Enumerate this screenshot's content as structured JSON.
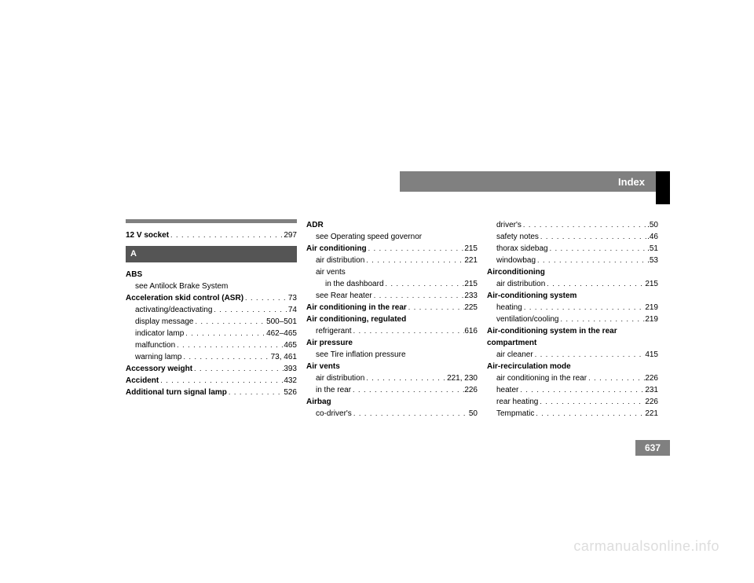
{
  "header": {
    "title": "Index"
  },
  "page_number": "637",
  "watermark": "carmanualsonline.info",
  "columns": [
    {
      "top_rule": true,
      "items": [
        {
          "label": "12 V socket",
          "bold": true,
          "page": "297"
        },
        {
          "section_letter": "A"
        },
        {
          "label": "ABS",
          "bold": true,
          "no_page": true
        },
        {
          "label": "see Antilock Brake System",
          "indent": 1,
          "no_page": true
        },
        {
          "label": "Acceleration skid control (ASR)",
          "bold": true,
          "page": "73"
        },
        {
          "label": "activating/deactivating",
          "indent": 1,
          "page": "74"
        },
        {
          "label": "display message",
          "indent": 1,
          "page": "500–501"
        },
        {
          "label": "indicator lamp",
          "indent": 1,
          "page": "462–465"
        },
        {
          "label": "malfunction",
          "indent": 1,
          "page": "465"
        },
        {
          "label": "warning lamp",
          "indent": 1,
          "page": "73, 461"
        },
        {
          "label": "Accessory weight",
          "bold": true,
          "page": "393"
        },
        {
          "label": "Accident",
          "bold": true,
          "page": "432"
        },
        {
          "label": "Additional turn signal lamp",
          "bold": true,
          "page": "526"
        }
      ]
    },
    {
      "top_rule": false,
      "items": [
        {
          "label": "ADR",
          "bold": true,
          "no_page": true
        },
        {
          "label": "see Operating speed governor",
          "indent": 1,
          "no_page": true
        },
        {
          "label": "Air conditioning",
          "bold": true,
          "page": "215"
        },
        {
          "label": "air distribution",
          "indent": 1,
          "page": "221"
        },
        {
          "label": "air vents",
          "indent": 1,
          "no_page": true
        },
        {
          "label": "in the dashboard",
          "indent": 2,
          "page": "215"
        },
        {
          "label": "see Rear heater",
          "indent": 1,
          "page": "233"
        },
        {
          "label": "Air conditioning in the rear",
          "bold": true,
          "page": "225"
        },
        {
          "label": "Air conditioning, regulated",
          "bold": true,
          "no_page": true
        },
        {
          "label": "refrigerant",
          "indent": 1,
          "page": "616"
        },
        {
          "label": "Air pressure",
          "bold": true,
          "no_page": true
        },
        {
          "label": "see Tire inflation pressure",
          "indent": 1,
          "no_page": true
        },
        {
          "label": "Air vents",
          "bold": true,
          "no_page": true
        },
        {
          "label": "air distribution",
          "indent": 1,
          "page": "221, 230"
        },
        {
          "label": "in the rear",
          "indent": 1,
          "page": "226"
        },
        {
          "label": "Airbag",
          "bold": true,
          "no_page": true
        },
        {
          "label": "co-driver's",
          "indent": 1,
          "page": "50"
        }
      ]
    },
    {
      "top_rule": false,
      "items": [
        {
          "label": "driver's",
          "indent": 1,
          "page": ".50"
        },
        {
          "label": "safety notes",
          "indent": 1,
          "page": ".46"
        },
        {
          "label": "thorax sidebag",
          "indent": 1,
          "page": ".51"
        },
        {
          "label": "windowbag",
          "indent": 1,
          "page": ".53"
        },
        {
          "label": "Airconditioning",
          "bold": true,
          "no_page": true
        },
        {
          "label": "air distribution",
          "indent": 1,
          "page": "215"
        },
        {
          "label": "Air-conditioning system",
          "bold": true,
          "no_page": true
        },
        {
          "label": "heating",
          "indent": 1,
          "page": "219"
        },
        {
          "label": "ventilation/cooling",
          "indent": 1,
          "page": "219"
        },
        {
          "label": "Air-conditioning system in the rear",
          "bold": true,
          "no_page": true
        },
        {
          "label": "compartment",
          "bold": true,
          "no_page": true
        },
        {
          "label": "air cleaner",
          "indent": 1,
          "page": "415"
        },
        {
          "label": "Air-recirculation mode",
          "bold": true,
          "no_page": true
        },
        {
          "label": "air conditioning in the rear",
          "indent": 1,
          "page": "226"
        },
        {
          "label": "heater",
          "indent": 1,
          "page": "231"
        },
        {
          "label": "rear heating",
          "indent": 1,
          "page": "226"
        },
        {
          "label": "Tempmatic",
          "indent": 1,
          "page": "221"
        }
      ]
    }
  ]
}
